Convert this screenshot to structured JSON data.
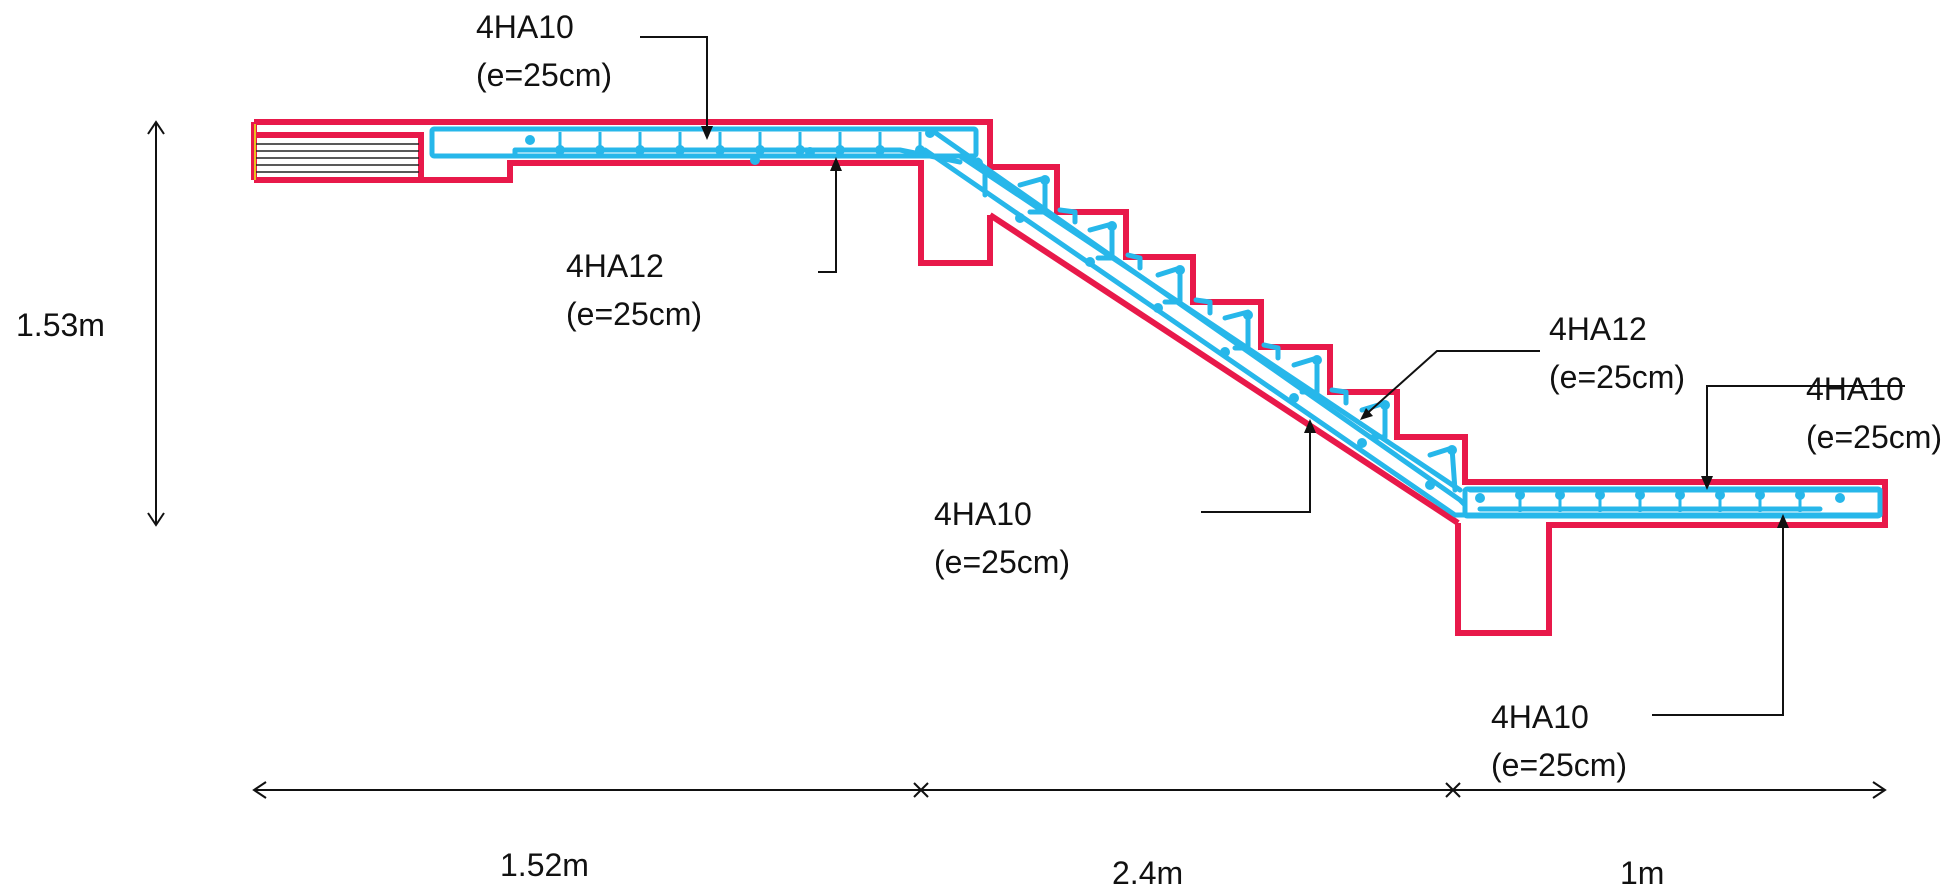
{
  "colors": {
    "concrete_outline": "#e8194a",
    "rebar": "#27b7ea",
    "leader": "#111111",
    "background": "#ffffff"
  },
  "annotations": [
    {
      "bar": "4HA10",
      "spacing": "(e=25cm)"
    },
    {
      "bar": "4HA12",
      "spacing": "(e=25cm)"
    },
    {
      "bar": "4HA12",
      "spacing": "(e=25cm)"
    },
    {
      "bar": "4HA10",
      "spacing": "(e=25cm)"
    },
    {
      "bar": "4HA10",
      "spacing": "(e=25cm)"
    },
    {
      "bar": "4HA10",
      "spacing": "(e=25cm)"
    }
  ],
  "dimensions": {
    "height": "1.53m",
    "span_landing_top": "1.52m",
    "span_flight": "2.4m",
    "span_landing_bottom": "1m"
  }
}
